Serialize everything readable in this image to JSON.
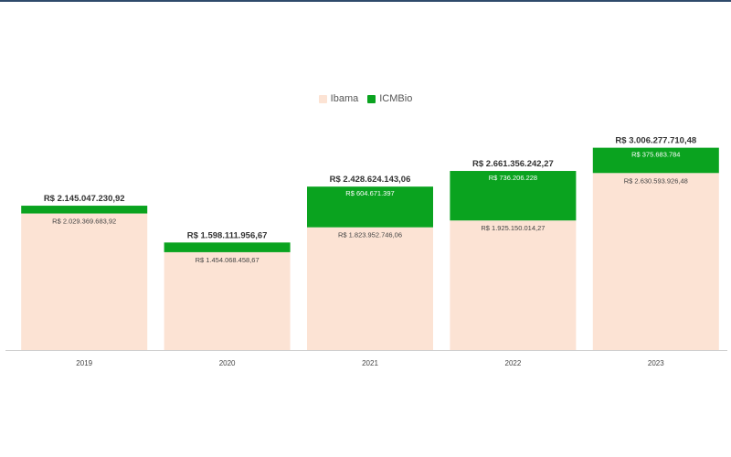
{
  "chart_data": {
    "type": "bar",
    "stacked": true,
    "categories": [
      "2019",
      "2020",
      "2021",
      "2022",
      "2023"
    ],
    "series": [
      {
        "name": "Ibama",
        "color": "#fce3d4",
        "values": [
          2029369683.92,
          1454068458.67,
          1823952746.06,
          1925150014.27,
          2630593926.48
        ],
        "labels": [
          "R$ 2.029.369.683,92",
          "R$ 1.454.068.458,67",
          "R$ 1.823.952.746,06",
          "R$ 1.925.150.014,27",
          "R$ 2.630.593.926,48"
        ]
      },
      {
        "name": "ICMBio",
        "color": "#0aa31f",
        "values": [
          115677547.0,
          144043498.0,
          604671397.0,
          736206228.0,
          375683784.0
        ],
        "labels": [
          "",
          "",
          "R$ 604.671.397",
          "R$ 736.206.228",
          "R$ 375.683.784"
        ]
      }
    ],
    "totals": [
      "R$ 2.145.047.230,92",
      "R$ 1.598.111.956,67",
      "R$ 2.428.624.143,06",
      "R$ 2.661.356.242,27",
      "R$ 3.006.277.710,48"
    ],
    "total_values": [
      2145047230.92,
      1598111956.67,
      2428624143.06,
      2661356242.27,
      3006277710.48
    ],
    "ylim": [
      0,
      3300000000
    ],
    "legend_position": "top-center",
    "grid": false,
    "title": "",
    "xlabel": "",
    "ylabel": ""
  }
}
